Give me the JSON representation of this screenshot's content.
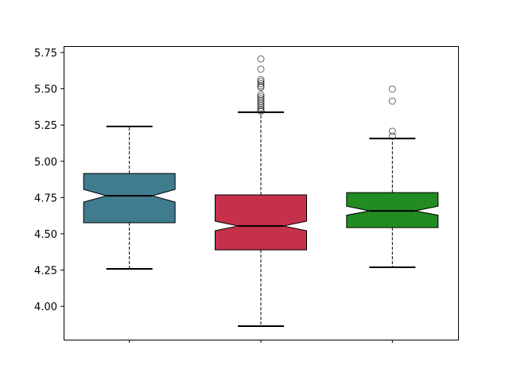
{
  "chart_data": {
    "type": "boxplot",
    "notched": true,
    "title": "",
    "xlabel": "",
    "ylabel": "",
    "ylim": [
      3.77,
      5.794
    ],
    "yticks": [
      "4.00",
      "4.25",
      "4.50",
      "4.75",
      "5.00",
      "5.25",
      "5.50",
      "5.75"
    ],
    "grid": false,
    "boxes": [
      {
        "color": "#3f7c8e",
        "whisker_low": 4.258,
        "q1": 4.576,
        "median": 4.762,
        "q3": 4.916,
        "whisker_high": 5.24,
        "notch_low": 4.719,
        "notch_high": 4.806,
        "outliers": []
      },
      {
        "color": "#c5314a",
        "whisker_low": 3.863,
        "q1": 4.389,
        "median": 4.554,
        "q3": 4.768,
        "whisker_high": 5.338,
        "notch_low": 4.521,
        "notch_high": 4.587,
        "outliers": [
          5.706,
          5.635,
          5.563,
          5.55,
          5.535,
          5.52,
          5.51,
          5.46,
          5.445,
          5.43,
          5.415,
          5.4,
          5.385,
          5.37,
          5.355,
          5.345
        ]
      },
      {
        "color": "#228b22",
        "whisker_low": 4.269,
        "q1": 4.543,
        "median": 4.658,
        "q3": 4.784,
        "whisker_high": 5.157,
        "notch_low": 4.628,
        "notch_high": 4.69,
        "outliers": [
          5.498,
          5.415,
          5.207,
          5.174
        ]
      }
    ]
  }
}
